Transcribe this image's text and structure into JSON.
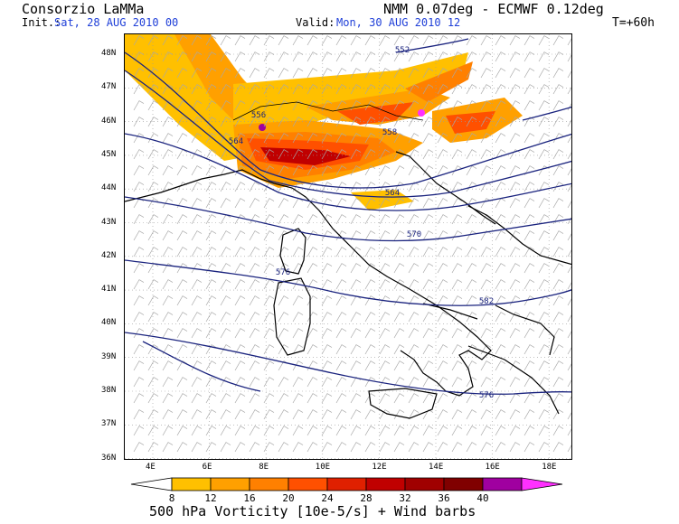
{
  "header": {
    "org": "Consorzio LaMMa",
    "model": "NMM 0.07deg - ECMWF 0.12deg",
    "init_label": "Init.:",
    "init_value": "Sat, 28 AUG 2010  00",
    "valid_label": "Valid:",
    "valid_value": "Mon, 30 AUG 2010  12",
    "lead_time": "T=+60h"
  },
  "map": {
    "lat_labels": [
      "48N",
      "47N",
      "46N",
      "45N",
      "44N",
      "43N",
      "42N",
      "41N",
      "40N",
      "39N",
      "38N",
      "37N",
      "36N"
    ],
    "lon_labels": [
      "4E",
      "6E",
      "8E",
      "10E",
      "12E",
      "14E",
      "16E",
      "18E"
    ],
    "geopotential_labels": [
      "552",
      "556",
      "558",
      "564",
      "564",
      "570",
      "576",
      "582",
      "576"
    ],
    "colors": {
      "coast": "#000000",
      "contour": "#1a237e",
      "wind_barb": "#a8a8a8",
      "grid": "#9a9a9a"
    }
  },
  "colorbar": {
    "ticks": [
      "8",
      "12",
      "16",
      "20",
      "24",
      "28",
      "32",
      "36",
      "40"
    ],
    "colors": [
      "#ffffff",
      "#ffc000",
      "#ffa000",
      "#ff8000",
      "#ff5000",
      "#e02000",
      "#c00000",
      "#a00000",
      "#800000",
      "#a000a0",
      "#ff30ff"
    ],
    "caption": "500 hPa Vorticity [10e-5/s] + Wind barbs"
  }
}
